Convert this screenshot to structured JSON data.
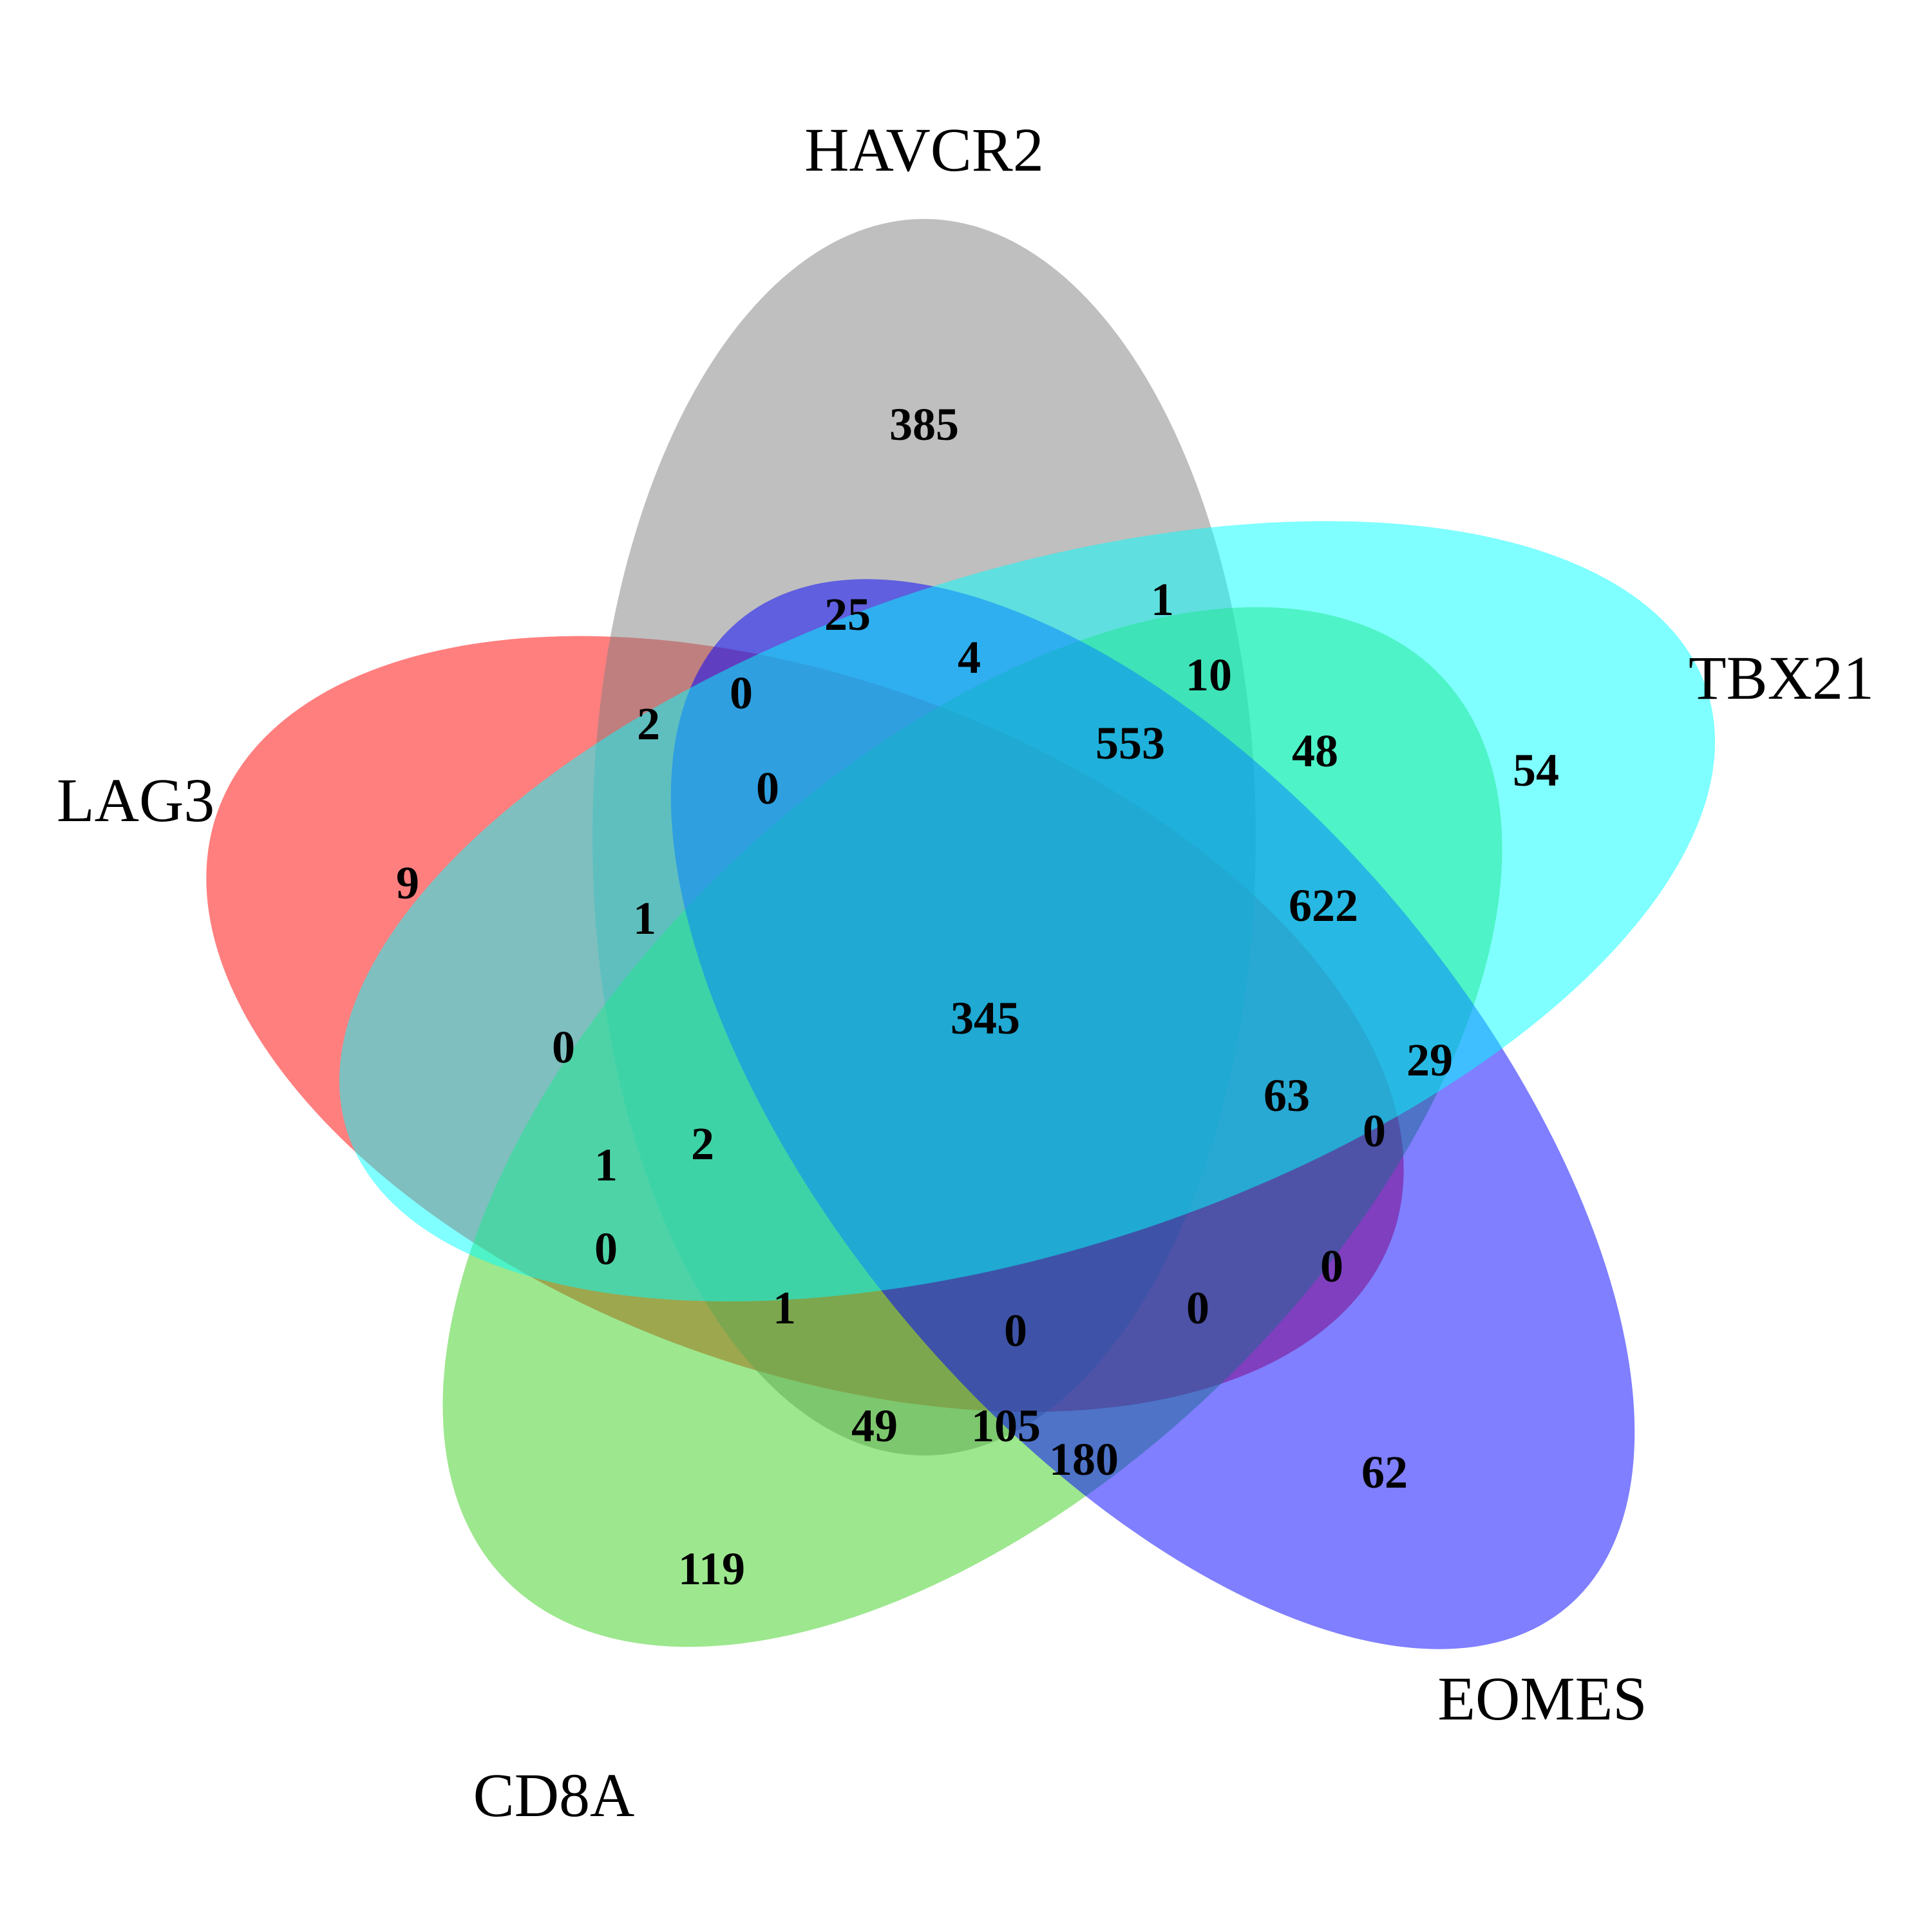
{
  "sets": [
    {
      "key": "havcr2",
      "name": "HAVCR2",
      "color": "#808080"
    },
    {
      "key": "tbx21",
      "name": "TBX21",
      "color": "#00FFFF"
    },
    {
      "key": "eomes",
      "name": "EOMES",
      "color": "#0000FF"
    },
    {
      "key": "cd8a",
      "name": "CD8A",
      "color": "#3CCF1E"
    },
    {
      "key": "lag3",
      "name": "LAG3",
      "color": "#FF0000"
    }
  ],
  "counts": {
    "havcr2_only": "385",
    "tbx21_only": "54",
    "eomes_only": "62",
    "cd8a_only": "119",
    "lag3_only": "9",
    "c25": "25",
    "c1_top": "1",
    "c4": "4",
    "c0_a": "0",
    "c2_a": "2",
    "c10": "10",
    "c553": "553",
    "c48": "48",
    "c0_b": "0",
    "c622": "622",
    "c1_b": "1",
    "center": "345",
    "c0_c": "0",
    "c29": "29",
    "c63": "63",
    "c0_d": "0",
    "c1_c": "1",
    "c2_b": "2",
    "c0_e": "0",
    "c0_f": "0",
    "c1_d": "1",
    "c0_g": "0",
    "c0_h": "0",
    "c49": "49",
    "c105": "105",
    "c180": "180"
  }
}
